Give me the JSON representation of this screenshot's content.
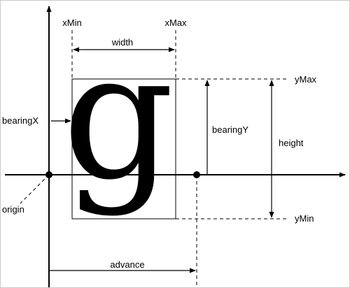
{
  "diagram": {
    "labels": {
      "xmin": "xMin",
      "xmax": "xMax",
      "width": "width",
      "ymax": "yMax",
      "ymin": "yMin",
      "bearing_x": "bearingX",
      "bearing_y": "bearingY",
      "height": "height",
      "origin": "origin",
      "advance": "advance"
    },
    "glyph": "g",
    "colors": {
      "ink": "#000000",
      "background": "#ffffff"
    }
  }
}
